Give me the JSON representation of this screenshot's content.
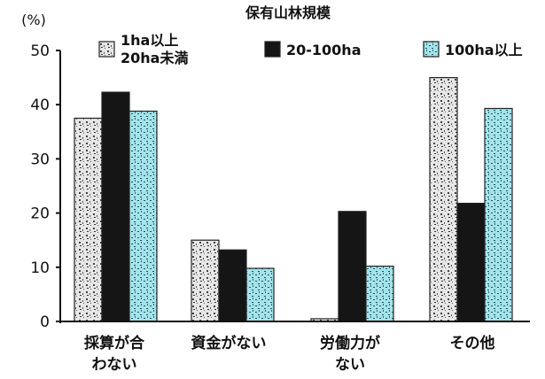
{
  "chart_data": {
    "type": "bar",
    "title": "保有山林規模",
    "ylabel": "(%)",
    "xlabel": "",
    "categories": [
      [
        "採算が合",
        "わない"
      ],
      [
        "資金がない"
      ],
      [
        "労働力が",
        "ない"
      ],
      [
        "その他"
      ]
    ],
    "series": [
      {
        "name": [
          "1ha以上",
          "20ha未満"
        ],
        "values": [
          37.5,
          15.0,
          0.5,
          45.0
        ],
        "color": "#e6e6e6",
        "pattern": "speckled"
      },
      {
        "name": [
          "20-100ha"
        ],
        "values": [
          42.3,
          13.2,
          20.3,
          21.8
        ],
        "color": "#151515",
        "pattern": "solid"
      },
      {
        "name": [
          "100ha以上"
        ],
        "values": [
          38.8,
          9.8,
          10.2,
          39.3
        ],
        "color": "#9fe3ea",
        "pattern": "hatched"
      }
    ],
    "ylim": [
      0,
      50
    ],
    "yticks": [
      0,
      10,
      20,
      30,
      40,
      50
    ],
    "grid": false,
    "legend_position": "top"
  }
}
